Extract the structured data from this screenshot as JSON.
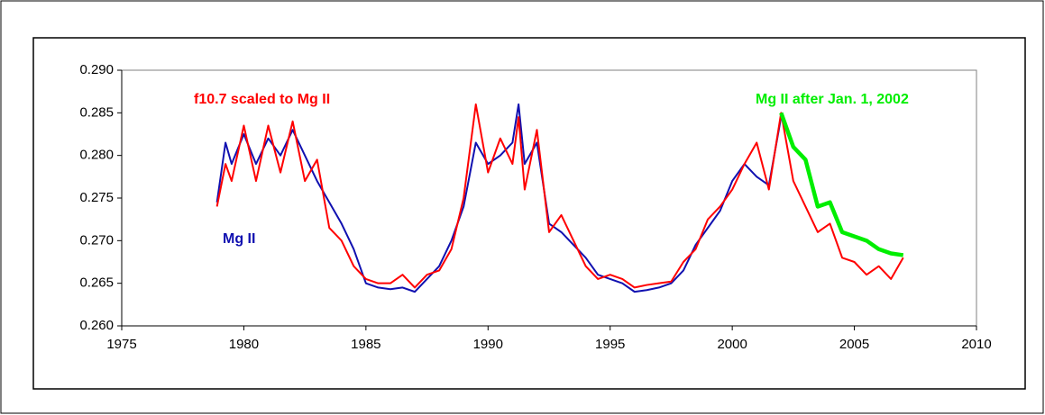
{
  "chart_data": {
    "type": "line",
    "x": [
      1978.9,
      1979.25,
      1979.5,
      1980.0,
      1980.5,
      1981.0,
      1981.5,
      1982.0,
      1982.5,
      1983.0,
      1983.5,
      1984.0,
      1984.5,
      1985.0,
      1985.5,
      1986.0,
      1986.5,
      1987.0,
      1987.5,
      1988.0,
      1988.5,
      1989.0,
      1989.5,
      1990.0,
      1990.5,
      1991.0,
      1991.25,
      1991.5,
      1992.0,
      1992.5,
      1993.0,
      1993.5,
      1994.0,
      1994.5,
      1995.0,
      1995.5,
      1996.0,
      1996.5,
      1997.0,
      1997.5,
      1998.0,
      1998.5,
      1999.0,
      1999.5,
      2000.0,
      2000.5,
      2001.0,
      2001.5,
      2002.0,
      2002.5,
      2003.0,
      2003.5,
      2004.0,
      2004.5,
      2005.0,
      2005.5,
      2006.0,
      2006.5,
      2007.0
    ],
    "series": [
      {
        "name": "Mg II",
        "color": "#1010b0",
        "values": [
          0.2745,
          0.2815,
          0.279,
          0.2825,
          0.279,
          0.282,
          0.28,
          0.283,
          0.28,
          0.277,
          0.2745,
          0.272,
          0.269,
          0.265,
          0.2645,
          0.2643,
          0.2645,
          0.264,
          0.2655,
          0.267,
          0.27,
          0.274,
          0.2815,
          0.279,
          0.28,
          0.2815,
          0.286,
          0.279,
          0.2815,
          0.272,
          0.271,
          0.2695,
          0.268,
          0.266,
          0.2655,
          0.265,
          0.264,
          0.2642,
          0.2645,
          0.265,
          0.2665,
          0.2695,
          0.2715,
          0.2735,
          0.277,
          0.279,
          0.2775,
          0.2765,
          0.2845,
          null,
          null,
          null,
          null,
          null,
          null,
          null,
          null,
          null,
          null
        ]
      },
      {
        "name": "f10.7 scaled to Mg II",
        "color": "#ff0000",
        "values": [
          0.274,
          0.279,
          0.277,
          0.2835,
          0.277,
          0.2835,
          0.278,
          0.284,
          0.277,
          0.2795,
          0.2715,
          0.27,
          0.267,
          0.2655,
          0.265,
          0.265,
          0.266,
          0.2645,
          0.266,
          0.2665,
          0.269,
          0.275,
          0.286,
          0.278,
          0.282,
          0.279,
          0.2845,
          0.276,
          0.283,
          0.271,
          0.273,
          0.27,
          0.267,
          0.2655,
          0.266,
          0.2655,
          0.2645,
          0.2648,
          0.265,
          0.2652,
          0.2675,
          0.269,
          0.2725,
          0.274,
          0.276,
          0.279,
          0.2815,
          0.276,
          0.285,
          0.277,
          0.274,
          0.271,
          0.272,
          0.268,
          0.2675,
          0.266,
          0.267,
          0.2655,
          0.268
        ]
      },
      {
        "name": "Mg II after Jan. 1, 2002",
        "color": "#00ee00",
        "values": [
          null,
          null,
          null,
          null,
          null,
          null,
          null,
          null,
          null,
          null,
          null,
          null,
          null,
          null,
          null,
          null,
          null,
          null,
          null,
          null,
          null,
          null,
          null,
          null,
          null,
          null,
          null,
          null,
          null,
          null,
          null,
          null,
          null,
          null,
          null,
          null,
          null,
          null,
          null,
          null,
          null,
          null,
          null,
          null,
          null,
          null,
          null,
          null,
          0.285,
          0.281,
          0.2795,
          0.274,
          0.2745,
          0.271,
          0.2705,
          0.27,
          0.269,
          0.2685,
          0.2683
        ]
      }
    ],
    "xlim": [
      1975,
      2010
    ],
    "xticks": [
      1975,
      1980,
      1985,
      1990,
      1995,
      2000,
      2005,
      2010
    ],
    "ylim": [
      0.26,
      0.29
    ],
    "yticks": [
      {
        "value": 0.26,
        "label": "0.260"
      },
      {
        "value": 0.265,
        "label": "0.265"
      },
      {
        "value": 0.27,
        "label": "0.270"
      },
      {
        "value": 0.275,
        "label": "0.275"
      },
      {
        "value": 0.28,
        "label": "0.280"
      },
      {
        "value": 0.285,
        "label": "0.285"
      },
      {
        "value": 0.29,
        "label": "0.290"
      }
    ]
  }
}
